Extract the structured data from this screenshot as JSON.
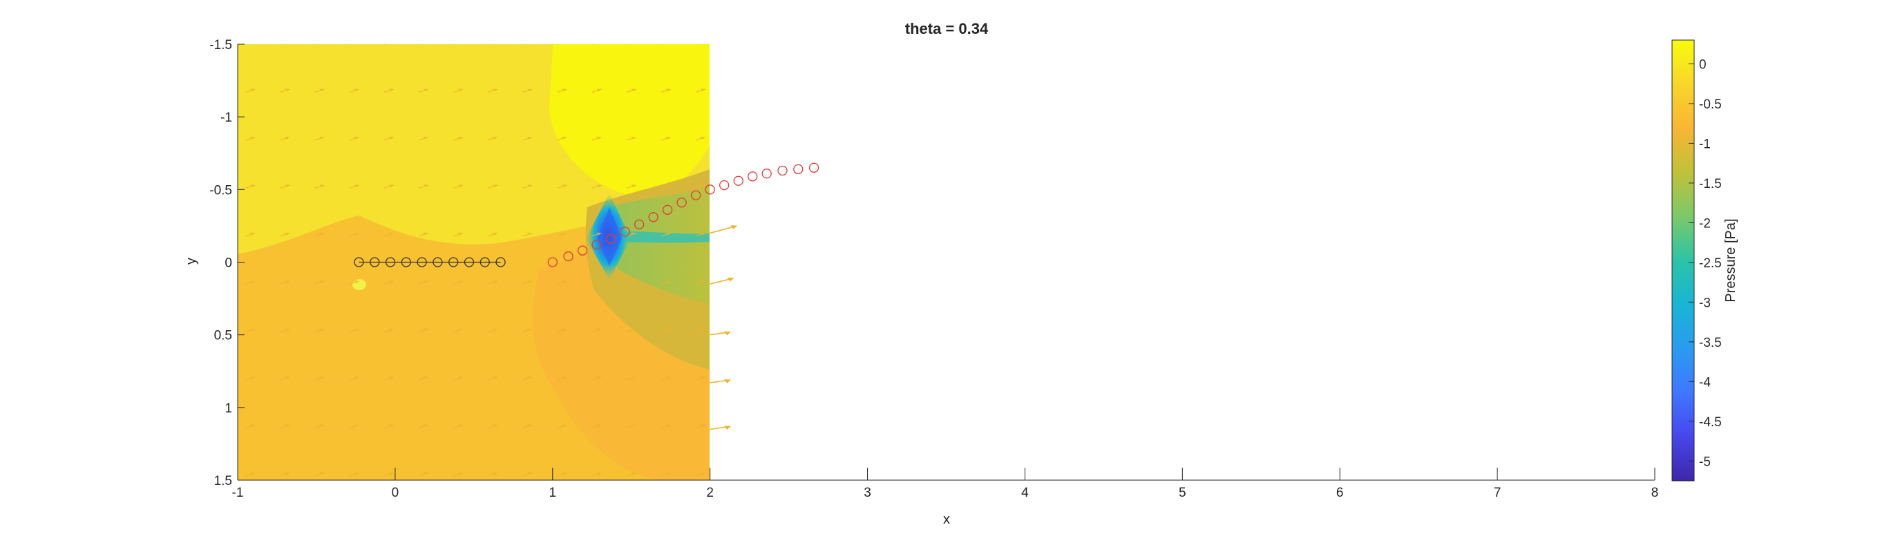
{
  "chart_data": {
    "type": "heatmap",
    "title": "theta = 0.34",
    "xlabel": "x",
    "ylabel": "y",
    "colorbar_label": "Pressure [Pa]",
    "xlim": [
      -1,
      8
    ],
    "ylim": [
      -1.5,
      1.5
    ],
    "y_axis_direction": "reversed",
    "x_ticks": [
      "-1",
      "0",
      "1",
      "2",
      "3",
      "4",
      "5",
      "6",
      "7",
      "8"
    ],
    "y_ticks": [
      "-1.5",
      "-1",
      "-0.5",
      "0",
      "0.5",
      "1",
      "1.5"
    ],
    "colorbar_ticks": [
      "0",
      "-0.5",
      "-1",
      "-1.5",
      "-2",
      "-2.5",
      "-3",
      "-3.5",
      "-4",
      "-4.5",
      "-5"
    ],
    "colorbar_range": [
      -5.25,
      0.3
    ],
    "colormap": "parula",
    "pressure_field": {
      "x_range": [
        -1,
        2
      ],
      "y_range": [
        -1.5,
        1.5
      ],
      "regions": [
        {
          "level": -0.15,
          "x": [
            -1,
            2
          ],
          "y": [
            -1.5,
            -0.1
          ]
        },
        {
          "level": -0.45,
          "x": [
            -1,
            2
          ],
          "y": [
            -0.1,
            1.5
          ]
        },
        {
          "level": 0.2,
          "x": [
            1.0,
            2
          ],
          "y": [
            -1.5,
            -0.55
          ]
        },
        {
          "level": -0.6,
          "x": [
            0.9,
            2
          ],
          "y": [
            0.1,
            1.5
          ]
        },
        {
          "level": -1.1,
          "x": [
            1.3,
            2
          ],
          "y": [
            -0.5,
            0.7
          ]
        },
        {
          "level": -5.2,
          "x": [
            1.37
          ],
          "y": [
            -0.17
          ]
        }
      ]
    },
    "series": [
      {
        "marker": "circle-black",
        "points": [
          {
            "x": -0.23,
            "y": 0.0
          },
          {
            "x": -0.13,
            "y": 0.0
          },
          {
            "x": -0.03,
            "y": 0.0
          },
          {
            "x": 0.07,
            "y": 0.0
          },
          {
            "x": 0.17,
            "y": 0.0
          },
          {
            "x": 0.27,
            "y": 0.0
          },
          {
            "x": 0.37,
            "y": 0.0
          },
          {
            "x": 0.47,
            "y": 0.0
          },
          {
            "x": 0.57,
            "y": 0.0
          },
          {
            "x": 0.67,
            "y": 0.0
          }
        ]
      },
      {
        "marker": "circle-red",
        "points": [
          {
            "x": 1.0,
            "y": 0.0
          },
          {
            "x": 1.1,
            "y": -0.04
          },
          {
            "x": 1.19,
            "y": -0.08
          },
          {
            "x": 1.28,
            "y": -0.12
          },
          {
            "x": 1.37,
            "y": -0.16
          },
          {
            "x": 1.46,
            "y": -0.21
          },
          {
            "x": 1.55,
            "y": -0.26
          },
          {
            "x": 1.64,
            "y": -0.31
          },
          {
            "x": 1.73,
            "y": -0.36
          },
          {
            "x": 1.82,
            "y": -0.41
          },
          {
            "x": 1.91,
            "y": -0.46
          },
          {
            "x": 2.0,
            "y": -0.5
          },
          {
            "x": 2.09,
            "y": -0.53
          },
          {
            "x": 2.18,
            "y": -0.56
          },
          {
            "x": 2.27,
            "y": -0.59
          },
          {
            "x": 2.36,
            "y": -0.61
          },
          {
            "x": 2.46,
            "y": -0.63
          },
          {
            "x": 2.56,
            "y": -0.64
          },
          {
            "x": 2.66,
            "y": -0.65
          }
        ]
      }
    ],
    "velocity_arrows": {
      "color": "#eeb32e",
      "dx": 0.06,
      "dy": -0.02,
      "boundary_arrows": [
        {
          "x": 2.0,
          "y": -0.2,
          "dx": 0.17,
          "dy": -0.05
        },
        {
          "x": 2.0,
          "y": 0.15,
          "dx": 0.15,
          "dy": -0.04
        },
        {
          "x": 2.0,
          "y": 0.5,
          "dx": 0.13,
          "dy": -0.02
        },
        {
          "x": 2.0,
          "y": 0.83,
          "dx": 0.13,
          "dy": -0.02
        },
        {
          "x": 2.0,
          "y": 1.15,
          "dx": 0.13,
          "dy": -0.02
        }
      ]
    },
    "grid": false,
    "legend": "none"
  }
}
